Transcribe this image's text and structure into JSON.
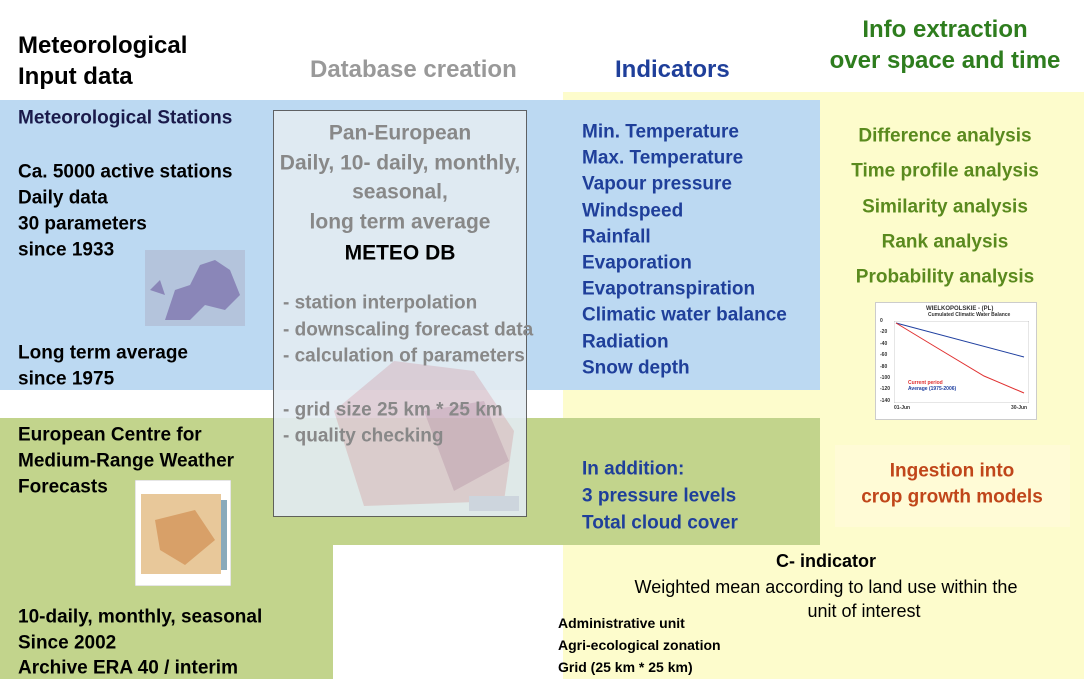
{
  "headers": {
    "input": [
      "Meteorological",
      "Input data"
    ],
    "database": "Database creation",
    "indicators": "Indicators",
    "extraction": [
      "Info extraction",
      "over space and time"
    ]
  },
  "stations": {
    "title": "Meteorological Stations",
    "details": [
      "Ca. 5000 active stations",
      "Daily data",
      "30 parameters",
      "since 1933"
    ],
    "average": [
      "Long term average",
      "since 1975"
    ]
  },
  "database": {
    "scope": [
      "Pan-European",
      "Daily, 10- daily, monthly,",
      "seasonal,",
      "long term average"
    ],
    "name": "METEO DB",
    "steps": [
      "- station interpolation",
      "- downscaling forecast data",
      "- calculation of parameters",
      "- grid size 25 km * 25 km",
      "- quality checking"
    ]
  },
  "indicators": [
    "Min. Temperature",
    "Max. Temperature",
    "Vapour pressure",
    "Windspeed",
    "Rainfall",
    "Evaporation",
    "Evapotranspiration",
    "Climatic water balance",
    "Radiation",
    "Snow depth"
  ],
  "analyses": [
    "Difference analysis",
    "Time profile analysis",
    "Similarity analysis",
    "Rank analysis",
    "Probability analysis"
  ],
  "example_chart": {
    "title": "WIELKOPOLSKIE - (PL)",
    "subtitle": "Cumulated Climatic Water Balance",
    "ticks": [
      "0",
      "-20",
      "-40",
      "-60",
      "-80",
      "-100",
      "-120",
      "-140"
    ],
    "legend": [
      "Current period",
      "Average (1975-2006)"
    ],
    "dates": [
      "01-Jun",
      "30-Jun"
    ]
  },
  "ecmwf": {
    "title": [
      "European Centre for",
      "Medium-Range Weather",
      "Forecasts"
    ],
    "details": [
      "10-daily, monthly, seasonal",
      "Since 2002",
      "Archive ERA 40 / interim"
    ]
  },
  "additional": [
    "In addition:",
    "3 pressure levels",
    "Total cloud cover"
  ],
  "ingestion": [
    "Ingestion into",
    "crop growth models"
  ],
  "c_indicator": {
    "title": "C- indicator",
    "description": [
      "Weighted mean according to land use within the",
      "unit of interest"
    ],
    "units": [
      "Administrative unit",
      "Agri-ecological zonation",
      "Grid (25 km * 25 km)"
    ]
  }
}
